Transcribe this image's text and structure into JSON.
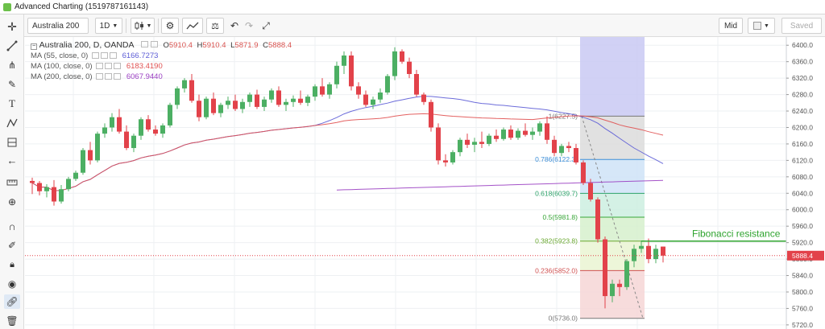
{
  "window": {
    "title": "Advanced Charting (1519787161143)"
  },
  "toolbar": {
    "symbol": "Australia 200",
    "interval": "1D",
    "price_type": "Mid",
    "saved_label": "Saved"
  },
  "header": {
    "symbol_line": "Australia 200, D, OANDA",
    "open_label": "O",
    "open_value": "5910.4",
    "high_label": "H",
    "high_value": "5910.4",
    "low_label": "L",
    "low_value": "5871.9",
    "close_label": "C",
    "close_value": "5888.4"
  },
  "studies": [
    {
      "label": "MA (55, close, 0)",
      "value": "6166.7273",
      "color": "#5c5cd6"
    },
    {
      "label": "MA (100, close, 0)",
      "value": "6183.4190",
      "color": "#e05050"
    },
    {
      "label": "MA (200, close, 0)",
      "value": "6067.9440",
      "color": "#9a3fc2"
    }
  ],
  "price_axis": {
    "ticks": [
      "6400.0",
      "6360.0",
      "6320.0",
      "6280.0",
      "6240.0",
      "6200.0",
      "6160.0",
      "6120.0",
      "6080.0",
      "6040.0",
      "6000.0",
      "5960.0",
      "5920.0",
      "5880.0",
      "5840.0",
      "5800.0",
      "5760.0",
      "5720.0"
    ],
    "current_price": "5888.4"
  },
  "fibonacci": {
    "levels": [
      {
        "label": "1(6227.5)",
        "price": 6227.5,
        "color": "#777777"
      },
      {
        "label": "0.786(6122.3)",
        "price": 6122.3,
        "color": "#3e8fd8"
      },
      {
        "label": "0.618(6039.7)",
        "price": 6039.7,
        "color": "#2ea36a"
      },
      {
        "label": "0.5(5981.8)",
        "price": 5981.8,
        "color": "#38a638"
      },
      {
        "label": "0.382(5923.8)",
        "price": 5923.8,
        "color": "#6aa830"
      },
      {
        "label": "0.236(5852.0)",
        "price": 5852.0,
        "color": "#d05050"
      },
      {
        "label": "0(5736.0)",
        "price": 5736.0,
        "color": "#777777"
      }
    ]
  },
  "annotation": {
    "text": "Fibonacci resistance",
    "price": 5923.8,
    "color": "#2ea32e"
  },
  "chart_data": {
    "type": "candlestick",
    "ylim": [
      5710,
      6420
    ],
    "candles": [
      {
        "o": 6070,
        "h": 6078,
        "l": 6038,
        "c": 6065
      },
      {
        "o": 6065,
        "h": 6070,
        "l": 6035,
        "c": 6045
      },
      {
        "o": 6045,
        "h": 6062,
        "l": 6030,
        "c": 6055
      },
      {
        "o": 6055,
        "h": 6072,
        "l": 6010,
        "c": 6020
      },
      {
        "o": 6020,
        "h": 6060,
        "l": 6015,
        "c": 6050
      },
      {
        "o": 6050,
        "h": 6080,
        "l": 6045,
        "c": 6075
      },
      {
        "o": 6075,
        "h": 6095,
        "l": 6070,
        "c": 6090
      },
      {
        "o": 6090,
        "h": 6150,
        "l": 6085,
        "c": 6145
      },
      {
        "o": 6145,
        "h": 6165,
        "l": 6110,
        "c": 6120
      },
      {
        "o": 6120,
        "h": 6190,
        "l": 6115,
        "c": 6185
      },
      {
        "o": 6185,
        "h": 6210,
        "l": 6175,
        "c": 6200
      },
      {
        "o": 6200,
        "h": 6235,
        "l": 6190,
        "c": 6225
      },
      {
        "o": 6225,
        "h": 6245,
        "l": 6185,
        "c": 6190
      },
      {
        "o": 6190,
        "h": 6205,
        "l": 6145,
        "c": 6150
      },
      {
        "o": 6150,
        "h": 6185,
        "l": 6140,
        "c": 6180
      },
      {
        "o": 6180,
        "h": 6225,
        "l": 6170,
        "c": 6220
      },
      {
        "o": 6220,
        "h": 6230,
        "l": 6190,
        "c": 6195
      },
      {
        "o": 6195,
        "h": 6205,
        "l": 6180,
        "c": 6185
      },
      {
        "o": 6185,
        "h": 6210,
        "l": 6175,
        "c": 6205
      },
      {
        "o": 6205,
        "h": 6260,
        "l": 6200,
        "c": 6255
      },
      {
        "o": 6255,
        "h": 6300,
        "l": 6245,
        "c": 6295
      },
      {
        "o": 6295,
        "h": 6320,
        "l": 6285,
        "c": 6315
      },
      {
        "o": 6315,
        "h": 6330,
        "l": 6260,
        "c": 6265
      },
      {
        "o": 6265,
        "h": 6280,
        "l": 6215,
        "c": 6225
      },
      {
        "o": 6225,
        "h": 6275,
        "l": 6220,
        "c": 6270
      },
      {
        "o": 6270,
        "h": 6285,
        "l": 6230,
        "c": 6235
      },
      {
        "o": 6235,
        "h": 6260,
        "l": 6225,
        "c": 6255
      },
      {
        "o": 6255,
        "h": 6275,
        "l": 6245,
        "c": 6265
      },
      {
        "o": 6265,
        "h": 6280,
        "l": 6240,
        "c": 6245
      },
      {
        "o": 6245,
        "h": 6270,
        "l": 6235,
        "c": 6262
      },
      {
        "o": 6262,
        "h": 6285,
        "l": 6250,
        "c": 6280
      },
      {
        "o": 6280,
        "h": 6292,
        "l": 6245,
        "c": 6250
      },
      {
        "o": 6250,
        "h": 6275,
        "l": 6240,
        "c": 6268
      },
      {
        "o": 6268,
        "h": 6295,
        "l": 6260,
        "c": 6290
      },
      {
        "o": 6290,
        "h": 6300,
        "l": 6250,
        "c": 6255
      },
      {
        "o": 6255,
        "h": 6270,
        "l": 6240,
        "c": 6262
      },
      {
        "o": 6262,
        "h": 6278,
        "l": 6250,
        "c": 6270
      },
      {
        "o": 6270,
        "h": 6290,
        "l": 6255,
        "c": 6260
      },
      {
        "o": 6260,
        "h": 6280,
        "l": 6252,
        "c": 6275
      },
      {
        "o": 6275,
        "h": 6305,
        "l": 6265,
        "c": 6300
      },
      {
        "o": 6300,
        "h": 6320,
        "l": 6275,
        "c": 6280
      },
      {
        "o": 6280,
        "h": 6310,
        "l": 6270,
        "c": 6305
      },
      {
        "o": 6305,
        "h": 6360,
        "l": 6295,
        "c": 6350
      },
      {
        "o": 6350,
        "h": 6385,
        "l": 6330,
        "c": 6375
      },
      {
        "o": 6375,
        "h": 6385,
        "l": 6290,
        "c": 6300
      },
      {
        "o": 6300,
        "h": 6310,
        "l": 6270,
        "c": 6280
      },
      {
        "o": 6280,
        "h": 6290,
        "l": 6250,
        "c": 6255
      },
      {
        "o": 6255,
        "h": 6275,
        "l": 6245,
        "c": 6268
      },
      {
        "o": 6268,
        "h": 6295,
        "l": 6260,
        "c": 6285
      },
      {
        "o": 6285,
        "h": 6330,
        "l": 6280,
        "c": 6325
      },
      {
        "o": 6325,
        "h": 6395,
        "l": 6315,
        "c": 6385
      },
      {
        "o": 6385,
        "h": 6390,
        "l": 6355,
        "c": 6360
      },
      {
        "o": 6360,
        "h": 6370,
        "l": 6320,
        "c": 6330
      },
      {
        "o": 6330,
        "h": 6340,
        "l": 6275,
        "c": 6280
      },
      {
        "o": 6280,
        "h": 6285,
        "l": 6255,
        "c": 6262
      },
      {
        "o": 6262,
        "h": 6268,
        "l": 6190,
        "c": 6200
      },
      {
        "o": 6200,
        "h": 6210,
        "l": 6110,
        "c": 6120
      },
      {
        "o": 6120,
        "h": 6135,
        "l": 6105,
        "c": 6115
      },
      {
        "o": 6115,
        "h": 6145,
        "l": 6110,
        "c": 6140
      },
      {
        "o": 6140,
        "h": 6175,
        "l": 6130,
        "c": 6170
      },
      {
        "o": 6170,
        "h": 6185,
        "l": 6150,
        "c": 6158
      },
      {
        "o": 6158,
        "h": 6175,
        "l": 6140,
        "c": 6165
      },
      {
        "o": 6165,
        "h": 6190,
        "l": 6150,
        "c": 6160
      },
      {
        "o": 6160,
        "h": 6185,
        "l": 6155,
        "c": 6180
      },
      {
        "o": 6180,
        "h": 6195,
        "l": 6165,
        "c": 6172
      },
      {
        "o": 6172,
        "h": 6200,
        "l": 6168,
        "c": 6195
      },
      {
        "o": 6195,
        "h": 6205,
        "l": 6170,
        "c": 6175
      },
      {
        "o": 6175,
        "h": 6198,
        "l": 6170,
        "c": 6192
      },
      {
        "o": 6192,
        "h": 6210,
        "l": 6178,
        "c": 6182
      },
      {
        "o": 6182,
        "h": 6200,
        "l": 6170,
        "c": 6190
      },
      {
        "o": 6190,
        "h": 6215,
        "l": 6180,
        "c": 6210
      },
      {
        "o": 6210,
        "h": 6227,
        "l": 6160,
        "c": 6170
      },
      {
        "o": 6170,
        "h": 6180,
        "l": 6130,
        "c": 6138
      },
      {
        "o": 6138,
        "h": 6160,
        "l": 6130,
        "c": 6155
      },
      {
        "o": 6155,
        "h": 6165,
        "l": 6140,
        "c": 6150
      },
      {
        "o": 6150,
        "h": 6160,
        "l": 6110,
        "c": 6115
      },
      {
        "o": 6115,
        "h": 6120,
        "l": 6060,
        "c": 6065
      },
      {
        "o": 6065,
        "h": 6075,
        "l": 6020,
        "c": 6025
      },
      {
        "o": 6025,
        "h": 6030,
        "l": 5920,
        "c": 5928
      },
      {
        "o": 5928,
        "h": 5935,
        "l": 5760,
        "c": 5790
      },
      {
        "o": 5790,
        "h": 5830,
        "l": 5775,
        "c": 5820
      },
      {
        "o": 5820,
        "h": 5830,
        "l": 5790,
        "c": 5812
      },
      {
        "o": 5812,
        "h": 5880,
        "l": 5805,
        "c": 5875
      },
      {
        "o": 5875,
        "h": 5915,
        "l": 5860,
        "c": 5905
      },
      {
        "o": 5905,
        "h": 5925,
        "l": 5895,
        "c": 5912
      },
      {
        "o": 5912,
        "h": 5930,
        "l": 5870,
        "c": 5880
      },
      {
        "o": 5880,
        "h": 5915,
        "l": 5870,
        "c": 5905
      },
      {
        "o": 5910.4,
        "h": 5910.4,
        "l": 5871.9,
        "c": 5888.4
      }
    ]
  }
}
